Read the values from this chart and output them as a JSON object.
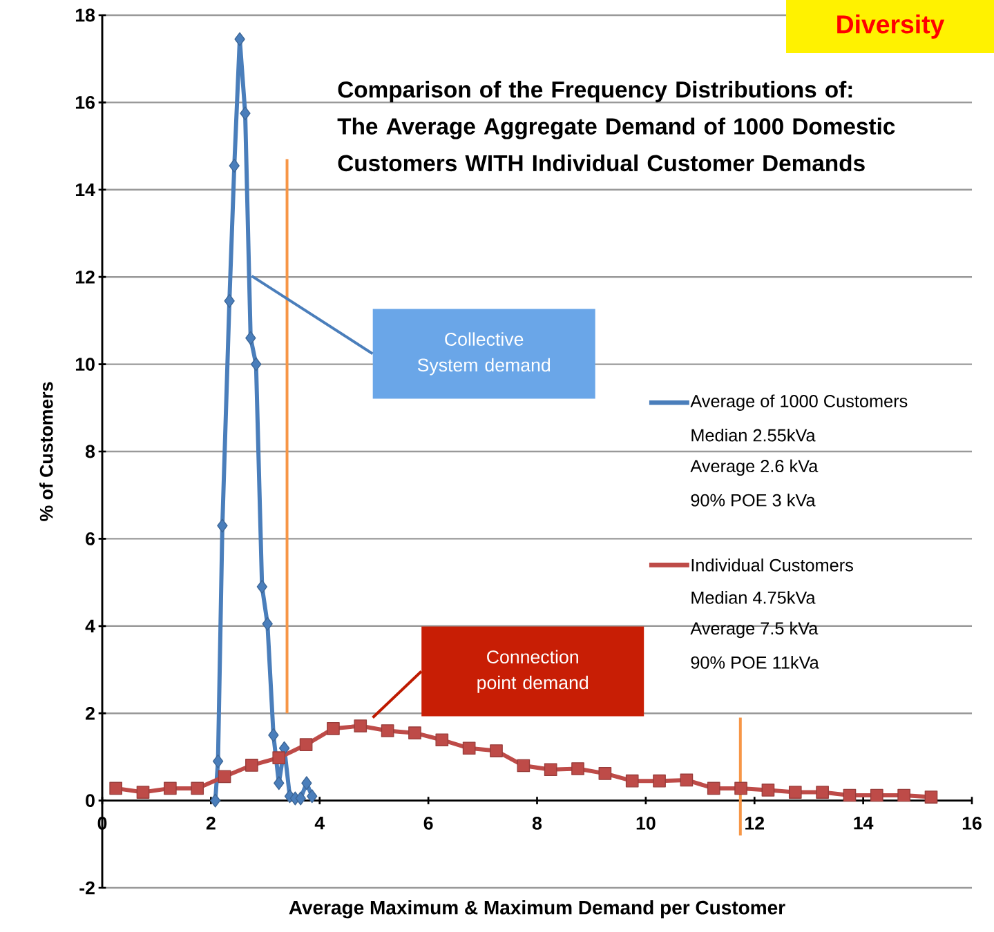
{
  "chart_data": {
    "type": "line",
    "title": "Comparison of the Frequency Distributions of: The Average Aggregate Demand of 1000 Domestic Customers WITH Individual Customer Demands",
    "xlabel": "Average Maximum & Maximum Demand per Customer",
    "ylabel": "% of Customers",
    "xlim": [
      0,
      16
    ],
    "ylim": [
      -2,
      18
    ],
    "xticks": [
      0,
      2,
      4,
      6,
      8,
      10,
      12,
      14,
      16
    ],
    "yticks": [
      -2,
      0,
      2,
      4,
      6,
      8,
      10,
      12,
      14,
      16,
      18
    ],
    "grid": "y",
    "legend": "right",
    "line_style": "solid",
    "series": [
      {
        "name": "Average of 1000 Customers",
        "color": "#4a7ebb",
        "marker": "diamond",
        "x": [
          2.08,
          2.13,
          2.21,
          2.34,
          2.43,
          2.53,
          2.63,
          2.73,
          2.83,
          2.94,
          3.04,
          3.15,
          3.25,
          3.35,
          3.45,
          3.55,
          3.65,
          3.76,
          3.86
        ],
        "values": [
          0,
          0.9,
          6.3,
          11.45,
          14.55,
          17.45,
          15.75,
          10.6,
          10.0,
          4.9,
          4.05,
          1.5,
          0.4,
          1.2,
          0.1,
          0.05,
          0.05,
          0.4,
          0.1
        ]
      },
      {
        "name": "Individual Customers",
        "color": "#be4b48",
        "marker": "square",
        "x": [
          0.25,
          0.75,
          1.25,
          1.75,
          2.25,
          2.75,
          3.25,
          3.75,
          4.25,
          4.75,
          5.25,
          5.75,
          6.25,
          6.75,
          7.25,
          7.75,
          8.25,
          8.75,
          9.25,
          9.75,
          10.25,
          10.75,
          11.25,
          11.75,
          12.25,
          12.75,
          13.25,
          13.75,
          14.25,
          14.75,
          15.25
        ],
        "values": [
          0.28,
          0.19,
          0.28,
          0.28,
          0.55,
          0.81,
          0.98,
          1.28,
          1.65,
          1.71,
          1.6,
          1.55,
          1.39,
          1.2,
          1.14,
          0.8,
          0.71,
          0.73,
          0.62,
          0.45,
          0.45,
          0.47,
          0.28,
          0.28,
          0.24,
          0.19,
          0.19,
          0.12,
          0.12,
          0.12,
          0.08
        ]
      }
    ],
    "ref_lines": [
      {
        "axis": "x",
        "value": 3.4,
        "color": "#f79646"
      },
      {
        "axis": "x",
        "value": 11.74,
        "color": "#f79646"
      }
    ],
    "annotations": [
      "Diversity",
      "Collective System demand",
      "Connection point demand",
      "Median 2.55kVa",
      "Average 2.6 kVa",
      "90% POE 3 kVa",
      "Median 4.75kVa",
      "Average 7.5 kVa",
      "90% POE 11kVa"
    ]
  }
}
